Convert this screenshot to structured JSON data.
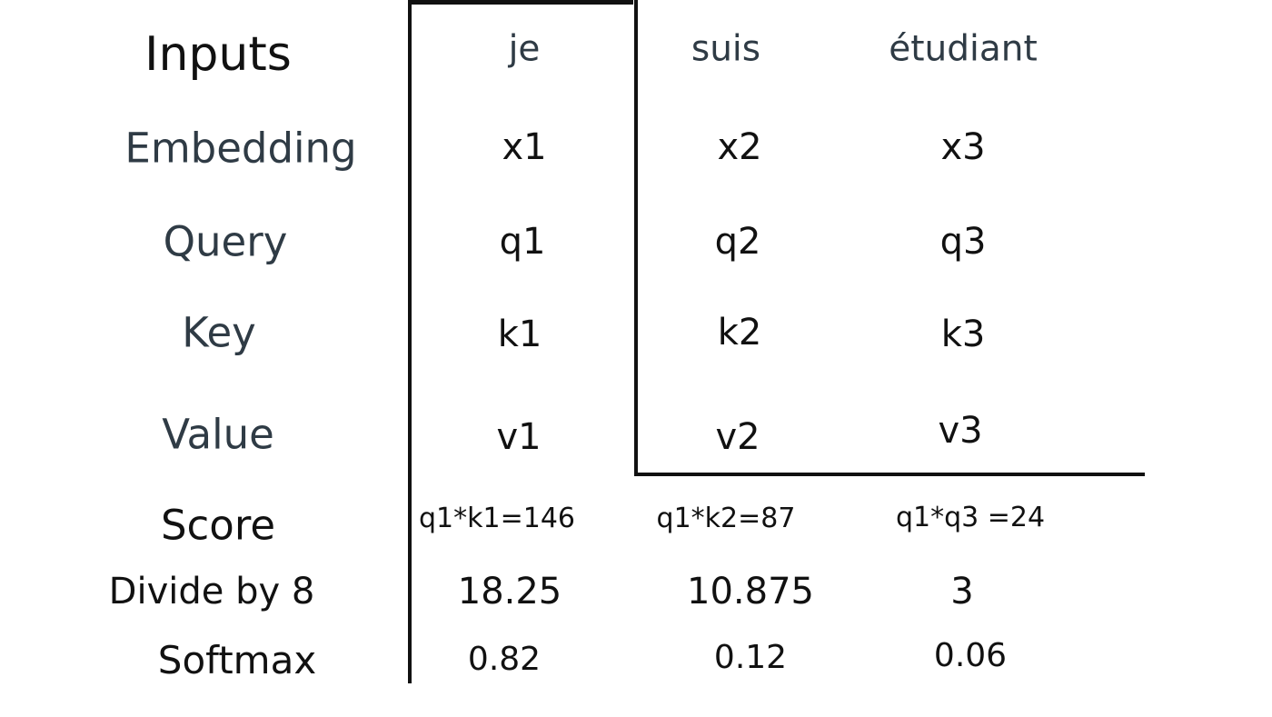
{
  "rows": {
    "inputs": {
      "label": "Inputs",
      "values": [
        "je",
        "suis",
        "étudiant"
      ]
    },
    "embedding": {
      "label": "Embedding",
      "values": [
        "x1",
        "x2",
        "x3"
      ]
    },
    "query": {
      "label": "Query",
      "values": [
        "q1",
        "q2",
        "q3"
      ]
    },
    "key": {
      "label": "Key",
      "values": [
        "k1",
        "k2",
        "k3"
      ]
    },
    "value": {
      "label": "Value",
      "values": [
        "v1",
        "v2",
        "v3"
      ]
    },
    "score": {
      "label": "Score",
      "values": [
        "q1*k1=146",
        "q1*k2=87",
        "q1*q3 =24"
      ]
    },
    "divide": {
      "label": "Divide by 8",
      "values": [
        "18.25",
        "10.875",
        "3"
      ]
    },
    "softmax": {
      "label": "Softmax",
      "values": [
        "0.82",
        "0.12",
        "0.06"
      ]
    }
  }
}
